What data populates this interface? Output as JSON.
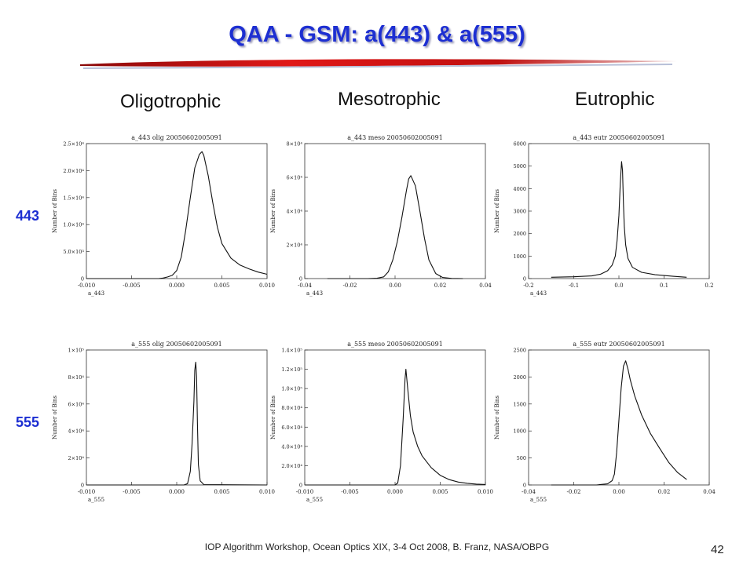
{
  "slide": {
    "title": "QAA - GSM: a(443) & a(555)",
    "col_headers": [
      "Oligotrophic",
      "Mesotrophic",
      "Eutrophic"
    ],
    "row_labels": [
      "443",
      "555"
    ],
    "footer": "IOP Algorithm Workshop, Ocean Optics XIX, 3-4 Oct 2008, B. Franz, NASA/OBPG",
    "page_number": "42",
    "title_color": "#1d2fd2",
    "accent_red": "#cc1010"
  },
  "chart_data": [
    {
      "type": "line",
      "title": "a_443 olig 20050602005091",
      "xlabel": "a_443",
      "ylabel": "Number of Bins",
      "xlim": [
        -0.01,
        0.01
      ],
      "ylim": [
        0,
        25000
      ],
      "xticks": [
        "-0.010",
        "-0.005",
        "0.000",
        "0.005",
        "0.010"
      ],
      "yticks": [
        "0",
        "5.0×10³",
        "1.0×10⁴",
        "1.5×10⁴",
        "2.0×10⁴",
        "2.5×10⁴"
      ],
      "x": [
        -0.01,
        -0.004,
        -0.002,
        -0.0015,
        -0.001,
        -0.0005,
        0.0,
        0.0005,
        0.001,
        0.0015,
        0.002,
        0.0025,
        0.0028,
        0.003,
        0.0035,
        0.004,
        0.0045,
        0.005,
        0.006,
        0.007,
        0.008,
        0.009,
        0.01
      ],
      "y": [
        0,
        0,
        0,
        100,
        300,
        600,
        1500,
        4000,
        9000,
        15000,
        20500,
        23000,
        23500,
        22800,
        19000,
        14000,
        9500,
        6500,
        3800,
        2500,
        1800,
        1200,
        800
      ]
    },
    {
      "type": "line",
      "title": "a_443 meso 20050602005091",
      "xlabel": "a_443",
      "ylabel": "Number of Bins",
      "xlim": [
        -0.04,
        0.04
      ],
      "ylim": [
        0,
        80000
      ],
      "xticks": [
        "-0.04",
        "-0.02",
        "0.00",
        "0.02",
        "0.04"
      ],
      "yticks": [
        "0",
        "2×10⁴",
        "4×10⁴",
        "6×10⁴",
        "8×10⁴"
      ],
      "x": [
        -0.03,
        -0.012,
        -0.008,
        -0.005,
        -0.003,
        -0.001,
        0.001,
        0.003,
        0.005,
        0.006,
        0.007,
        0.009,
        0.011,
        0.013,
        0.015,
        0.018,
        0.021,
        0.025,
        0.03
      ],
      "y": [
        0,
        0,
        200,
        1000,
        4000,
        11000,
        22000,
        36000,
        52000,
        59000,
        61000,
        55000,
        40000,
        24000,
        11000,
        3000,
        700,
        100,
        0
      ]
    },
    {
      "type": "line",
      "title": "a_443 eutr 20050602005091",
      "xlabel": "a_443",
      "ylabel": "Number of Bins",
      "xlim": [
        -0.2,
        0.2
      ],
      "ylim": [
        0,
        6000
      ],
      "xticks": [
        "-0.2",
        "-0.1",
        "0.0",
        "0.1",
        "0.2"
      ],
      "yticks": [
        "0",
        "1000",
        "2000",
        "3000",
        "4000",
        "5000",
        "6000"
      ],
      "x": [
        -0.15,
        -0.1,
        -0.06,
        -0.04,
        -0.025,
        -0.015,
        -0.008,
        -0.004,
        0.0,
        0.003,
        0.006,
        0.008,
        0.01,
        0.012,
        0.015,
        0.02,
        0.03,
        0.05,
        0.08,
        0.12,
        0.15
      ],
      "y": [
        60,
        80,
        120,
        200,
        350,
        600,
        1000,
        1700,
        2800,
        4200,
        5200,
        4800,
        3300,
        2300,
        1500,
        900,
        500,
        280,
        170,
        100,
        60
      ]
    },
    {
      "type": "line",
      "title": "a_555 olig 20050602005091",
      "xlabel": "a_555",
      "ylabel": "Number of Bins",
      "xlim": [
        -0.01,
        0.01
      ],
      "ylim": [
        0,
        100000
      ],
      "xticks": [
        "-0.010",
        "-0.005",
        "0.000",
        "0.005",
        "0.010"
      ],
      "yticks": [
        "0",
        "2×10⁴",
        "4×10⁴",
        "6×10⁴",
        "8×10⁴",
        "1×10⁵"
      ],
      "x": [
        -0.01,
        0.0008,
        0.0012,
        0.0015,
        0.0017,
        0.0019,
        0.002,
        0.0021,
        0.0022,
        0.0023,
        0.0024,
        0.0026,
        0.003,
        0.01
      ],
      "y": [
        0,
        0,
        1000,
        10000,
        30000,
        62000,
        85000,
        91000,
        80000,
        45000,
        15000,
        3000,
        300,
        0
      ]
    },
    {
      "type": "line",
      "title": "a_555 meso 20050602005091",
      "xlabel": "a_555",
      "ylabel": "Number of Bins",
      "xlim": [
        -0.01,
        0.01
      ],
      "ylim": [
        0,
        140000
      ],
      "xticks": [
        "-0.010",
        "-0.005",
        "0.000",
        "0.005",
        "0.010"
      ],
      "yticks": [
        "0",
        "2.0×10⁴",
        "4.0×10⁴",
        "6.0×10⁴",
        "8.0×10⁴",
        "1.0×10⁵",
        "1.2×10⁵",
        "1.4×10⁵"
      ],
      "x": [
        -0.01,
        0.0,
        0.0003,
        0.0006,
        0.0009,
        0.0011,
        0.0012,
        0.0014,
        0.0017,
        0.002,
        0.0025,
        0.003,
        0.004,
        0.005,
        0.006,
        0.007,
        0.008,
        0.009,
        0.01
      ],
      "y": [
        0,
        0,
        2000,
        20000,
        70000,
        110000,
        120000,
        100000,
        72000,
        55000,
        40000,
        30000,
        18000,
        10000,
        5500,
        3000,
        1700,
        900,
        500
      ]
    },
    {
      "type": "line",
      "title": "a_555 eutr 20050602005091",
      "xlabel": "a_555",
      "ylabel": "Number of Bins",
      "xlim": [
        -0.04,
        0.04
      ],
      "ylim": [
        0,
        2500
      ],
      "xticks": [
        "-0.04",
        "-0.02",
        "0.00",
        "0.02",
        "0.04"
      ],
      "yticks": [
        "0",
        "500",
        "1000",
        "1500",
        "2000",
        "2500"
      ],
      "x": [
        -0.03,
        -0.01,
        -0.005,
        -0.003,
        -0.002,
        -0.001,
        0.0,
        0.001,
        0.002,
        0.003,
        0.004,
        0.005,
        0.007,
        0.01,
        0.014,
        0.018,
        0.022,
        0.026,
        0.03
      ],
      "y": [
        0,
        0,
        20,
        80,
        200,
        600,
        1200,
        1800,
        2200,
        2300,
        2150,
        1950,
        1650,
        1300,
        950,
        680,
        420,
        230,
        100
      ]
    }
  ]
}
